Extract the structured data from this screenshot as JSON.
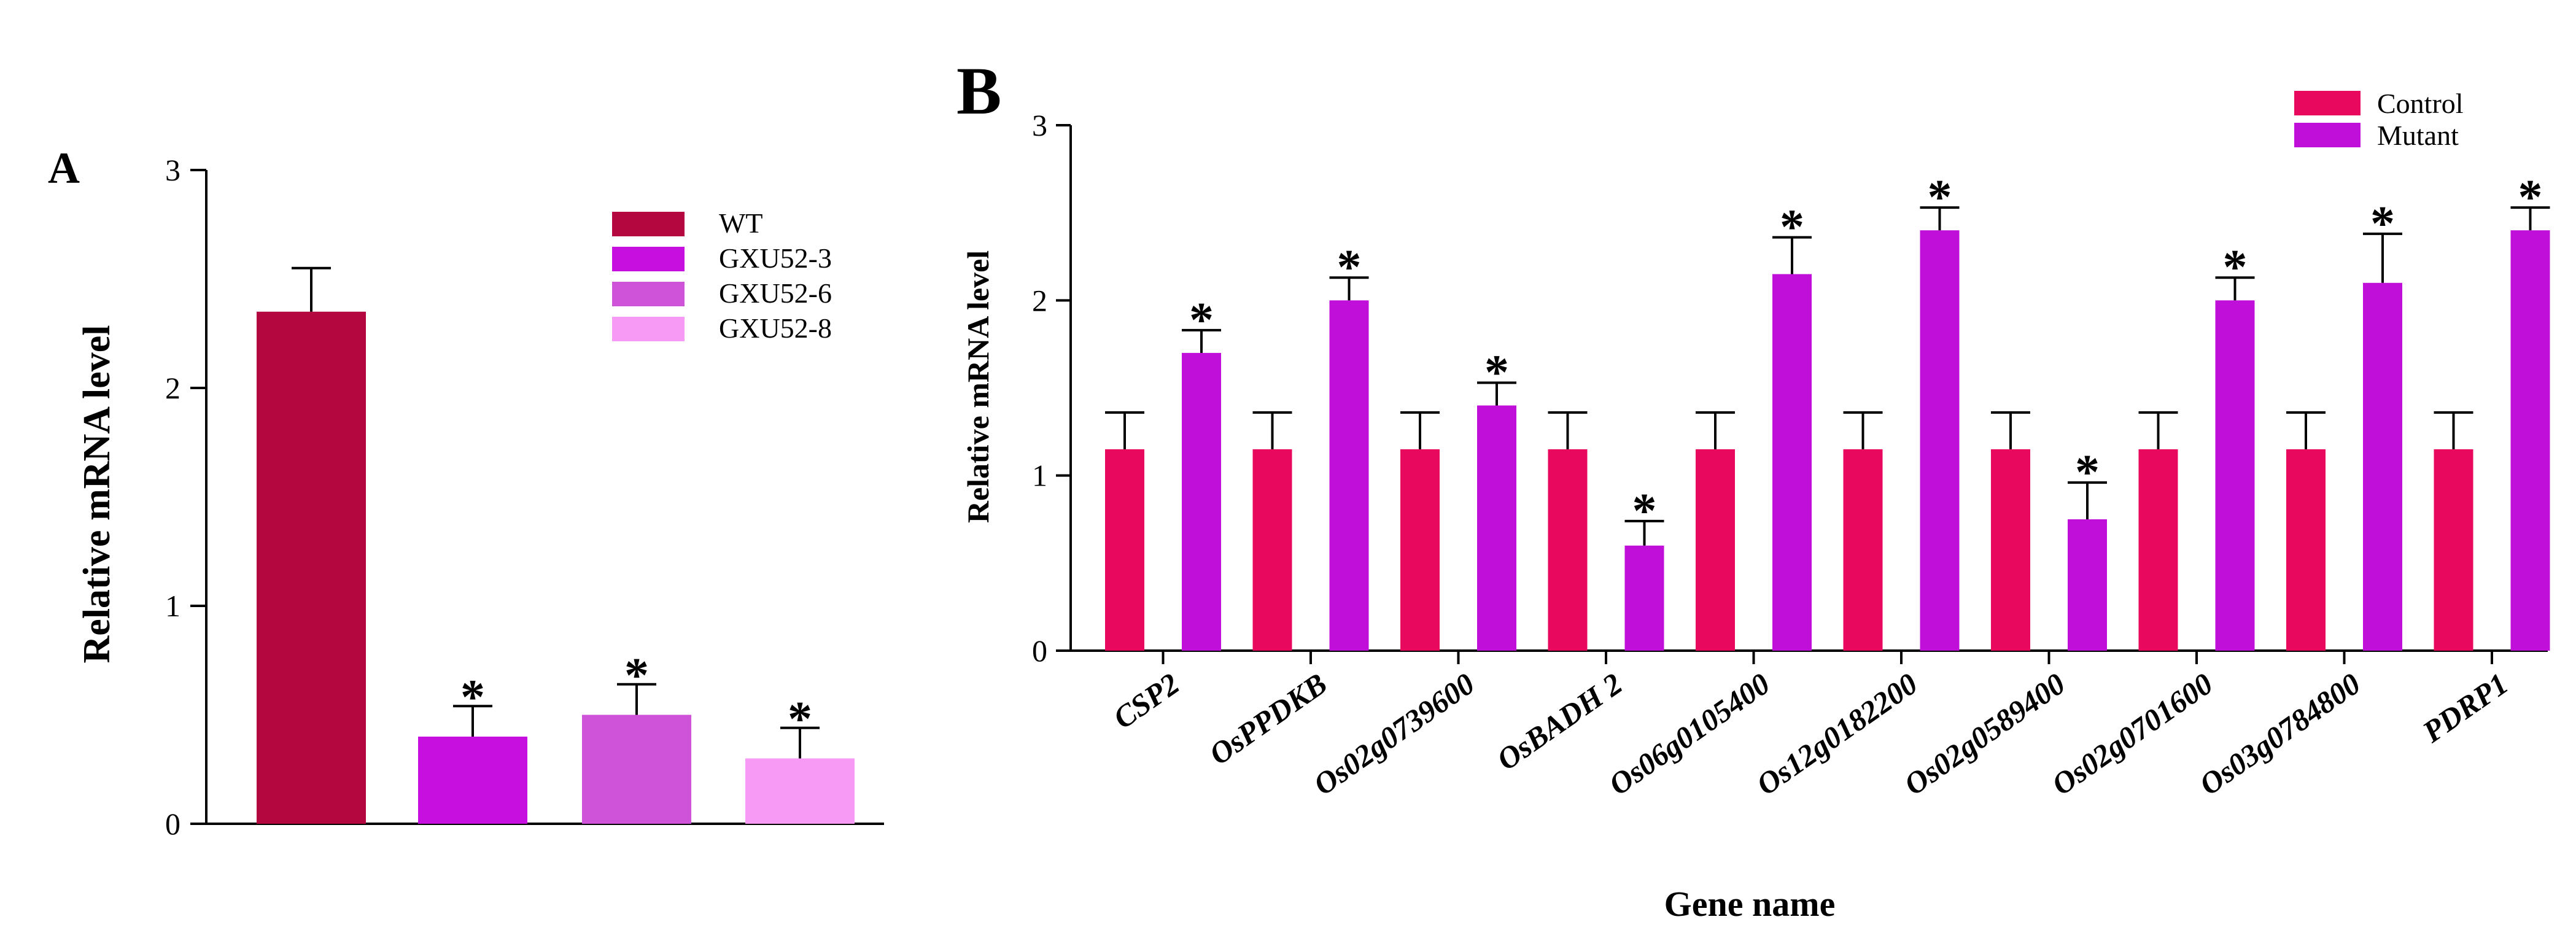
{
  "panels": {
    "a": {
      "letter": "A",
      "ylabel": "Relative mRNA level",
      "legend": [
        "WT",
        "GXU52-3",
        "GXU52-6",
        "GXU52-8"
      ]
    },
    "b": {
      "letter": "B",
      "ylabel": "Relative mRNA level",
      "xlabel": "Gene name",
      "legend": [
        "Control",
        "Mutant"
      ]
    }
  },
  "colors": {
    "wt": "#b5073f",
    "gxu52_3": "#c70fe0",
    "gxu52_6": "#cf53d9",
    "gxu52_8": "#f79af5",
    "control": "#e8095f",
    "mutant": "#c00fd8"
  },
  "chart_data": [
    {
      "type": "bar",
      "panel": "A",
      "categories": [
        "WT",
        "GXU52-3",
        "GXU52-6",
        "GXU52-8"
      ],
      "values": [
        2.35,
        0.4,
        0.5,
        0.3
      ],
      "errors": [
        0.2,
        0.14,
        0.14,
        0.14
      ],
      "significance": [
        "",
        "*",
        "*",
        "*"
      ],
      "ylabel": "Relative mRNA level",
      "xlabel": "",
      "ylim": [
        0,
        3
      ],
      "yticks": [
        "0",
        "1",
        "2",
        "3"
      ],
      "legend_position": "top-right",
      "grid": false
    },
    {
      "type": "bar",
      "panel": "B",
      "categories": [
        "CSP2",
        "OsPPDKB",
        "Os02g0739600",
        "OsBADH 2",
        "Os06g0105400",
        "Os12g0182200",
        "Os02g0589400",
        "Os02g0701600",
        "Os03g0784800",
        "PDRP1"
      ],
      "series": [
        {
          "name": "Control",
          "values": [
            1.15,
            1.15,
            1.15,
            1.15,
            1.15,
            1.15,
            1.15,
            1.15,
            1.15,
            1.15
          ],
          "errors": [
            0.21,
            0.21,
            0.21,
            0.21,
            0.21,
            0.21,
            0.21,
            0.21,
            0.21,
            0.21
          ],
          "significance": [
            "",
            "",
            "",
            "",
            "",
            "",
            "",
            "",
            "",
            ""
          ]
        },
        {
          "name": "Mutant",
          "values": [
            1.7,
            2.0,
            1.4,
            0.6,
            2.15,
            2.4,
            0.75,
            2.0,
            2.1,
            2.4
          ],
          "errors": [
            0.13,
            0.13,
            0.13,
            0.14,
            0.21,
            0.13,
            0.21,
            0.13,
            0.28,
            0.13
          ],
          "significance": [
            "*",
            "*",
            "*",
            "*",
            "*",
            "*",
            "*",
            "*",
            "*",
            "*"
          ]
        }
      ],
      "ylabel": "Relative mRNA level",
      "xlabel": "Gene name",
      "ylim": [
        0,
        3
      ],
      "yticks": [
        "0",
        "1",
        "2",
        "3"
      ],
      "legend_position": "top-right",
      "grid": false
    }
  ]
}
